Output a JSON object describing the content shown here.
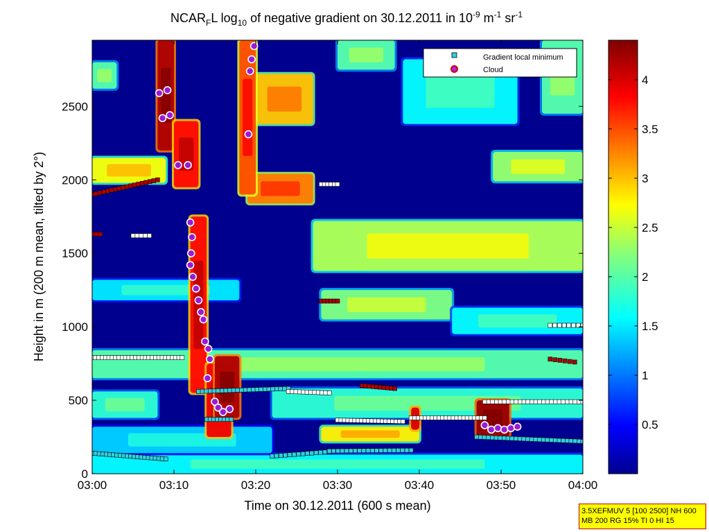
{
  "title": {
    "prefix": "NCAR",
    "sub1": "F",
    "mid": "L log",
    "sub2": "10",
    "rest": " of negative gradient on 30.12.2011 in 10",
    "sup1": "-9",
    "unit1": " m",
    "sup2": "-1",
    "unit2": " sr",
    "sup3": "-1"
  },
  "info_box": {
    "line1": "3.5XEFMUV 5 [100 2500] NH 600",
    "line2": "MB 200 RG 15% TI 0 HI 15"
  },
  "colors": {
    "background": "#00008f",
    "marker_square_fill": "#ffffff",
    "marker_square_cyan": "#30d0e0",
    "marker_square_red": "#b00000",
    "marker_square_magenta": "#ff00ff",
    "cloud_marker_fill": "#9b1ad6",
    "cloud_marker_stroke": "#ffffff"
  },
  "chart_data": {
    "type": "heatmap",
    "title": "NCAR_F L log_10 of negative gradient on 30.12.2011 in 10^-9 m^-1 sr^-1",
    "xlabel": "Time on 30.12.2011 (600 s mean)",
    "ylabel": "Height in m (200 m mean, tilted by 2°)",
    "x_ticks": [
      "03:00",
      "03:10",
      "03:20",
      "03:30",
      "03:40",
      "03:50",
      "04:00"
    ],
    "xlim_minutes": [
      0,
      60
    ],
    "ylim": [
      0,
      2950
    ],
    "y_ticks": [
      0,
      500,
      1000,
      1500,
      2000,
      2500
    ],
    "colorbar": {
      "ticks": [
        0.5,
        1,
        1.5,
        2,
        2.5,
        3,
        3.5,
        4
      ],
      "range": [
        0,
        4.4
      ],
      "colormap": "jet"
    },
    "legend": {
      "placement": "top-right",
      "entries": [
        "Gradient local minimum",
        "Cloud"
      ]
    },
    "layers": [
      {
        "t0": 0,
        "t1": 60,
        "h0": 0,
        "h1": 130,
        "v": 1.6
      },
      {
        "t0": 0,
        "t1": 22,
        "h0": 140,
        "h1": 320,
        "v": 1.4
      },
      {
        "t0": 0,
        "t1": 8,
        "h0": 380,
        "h1": 560,
        "v": 1.8
      },
      {
        "t0": 0,
        "t1": 60,
        "h0": 650,
        "h1": 840,
        "v": 2.0
      },
      {
        "t0": 22,
        "t1": 60,
        "h0": 380,
        "h1": 580,
        "v": 1.8
      },
      {
        "t0": 28,
        "t1": 40,
        "h0": 220,
        "h1": 320,
        "v": 2.8
      },
      {
        "t0": 0,
        "t1": 18,
        "h0": 1180,
        "h1": 1320,
        "v": 1.5
      },
      {
        "t0": 28,
        "t1": 44,
        "h0": 1050,
        "h1": 1250,
        "v": 2.2
      },
      {
        "t0": 44,
        "t1": 60,
        "h0": 950,
        "h1": 1130,
        "v": 1.6
      },
      {
        "t0": 27,
        "t1": 60,
        "h0": 1380,
        "h1": 1720,
        "v": 2.4
      },
      {
        "t0": 0,
        "t1": 9,
        "h0": 1980,
        "h1": 2150,
        "v": 2.7
      },
      {
        "t0": 19,
        "t1": 27,
        "h0": 1840,
        "h1": 2040,
        "v": 3.3
      },
      {
        "t0": 20,
        "t1": 27,
        "h0": 2380,
        "h1": 2720,
        "v": 3.0
      },
      {
        "t0": 49,
        "t1": 60,
        "h0": 1990,
        "h1": 2190,
        "v": 2.3
      },
      {
        "t0": 55,
        "t1": 60,
        "h0": 2450,
        "h1": 2950,
        "v": 2.0
      },
      {
        "t0": 0,
        "t1": 3,
        "h0": 2620,
        "h1": 2800,
        "v": 2.0
      },
      {
        "t0": 30,
        "t1": 37,
        "h0": 2750,
        "h1": 2950,
        "v": 2.0
      },
      {
        "t0": 38,
        "t1": 52,
        "h0": 2380,
        "h1": 2820,
        "v": 1.6
      },
      {
        "t0": 8,
        "t1": 10,
        "h0": 2200,
        "h1": 2950,
        "v": 4.2
      },
      {
        "t0": 10,
        "t1": 13,
        "h0": 1950,
        "h1": 2400,
        "v": 3.8
      },
      {
        "t0": 12,
        "t1": 14,
        "h0": 550,
        "h1": 1750,
        "v": 3.8
      },
      {
        "t0": 14,
        "t1": 17,
        "h0": 250,
        "h1": 750,
        "v": 3.9
      },
      {
        "t0": 15,
        "t1": 18,
        "h0": 380,
        "h1": 800,
        "v": 4.2
      },
      {
        "t0": 18,
        "t1": 20,
        "h0": 1900,
        "h1": 2950,
        "v": 3.5
      },
      {
        "t0": 39,
        "t1": 40,
        "h0": 300,
        "h1": 450,
        "v": 4.0
      },
      {
        "t0": 47,
        "t1": 51,
        "h0": 250,
        "h1": 500,
        "v": 4.3
      }
    ],
    "minima_series": [
      {
        "t0": 0,
        "t1": 11,
        "h0": 790,
        "h1": 790,
        "n": 28,
        "c": "white"
      },
      {
        "t0": 0,
        "t1": 9,
        "h0": 140,
        "h1": 100,
        "n": 22,
        "c": "cyan"
      },
      {
        "t0": 13,
        "t1": 24,
        "h0": 560,
        "h1": 580,
        "n": 24,
        "c": "cyan"
      },
      {
        "t0": 24,
        "t1": 29,
        "h0": 560,
        "h1": 550,
        "n": 12,
        "c": "white"
      },
      {
        "t0": 22,
        "t1": 29,
        "h0": 120,
        "h1": 150,
        "n": 14,
        "c": "cyan"
      },
      {
        "t0": 29,
        "t1": 39,
        "h0": 155,
        "h1": 160,
        "n": 20,
        "c": "cyan"
      },
      {
        "t0": 30,
        "t1": 38,
        "h0": 365,
        "h1": 355,
        "n": 20,
        "c": "white"
      },
      {
        "t0": 39,
        "t1": 48,
        "h0": 380,
        "h1": 380,
        "n": 22,
        "c": "white"
      },
      {
        "t0": 48,
        "t1": 60,
        "h0": 490,
        "h1": 490,
        "n": 26,
        "c": "white"
      },
      {
        "t0": 47,
        "t1": 60,
        "h0": 250,
        "h1": 220,
        "n": 28,
        "c": "cyan"
      },
      {
        "t0": 33,
        "t1": 37,
        "h0": 600,
        "h1": 580,
        "n": 10,
        "c": "red"
      },
      {
        "t0": 28,
        "t1": 30,
        "h0": 1970,
        "h1": 1970,
        "n": 6,
        "c": "white"
      },
      {
        "t0": 0,
        "t1": 8,
        "h0": 1900,
        "h1": 2000,
        "n": 18,
        "c": "red"
      },
      {
        "t0": 14,
        "t1": 17,
        "h0": 370,
        "h1": 370,
        "n": 8,
        "c": "cyan"
      },
      {
        "t0": 56,
        "t1": 60,
        "h0": 1010,
        "h1": 1010,
        "n": 8,
        "c": "white"
      },
      {
        "t0": 56,
        "t1": 59,
        "h0": 780,
        "h1": 760,
        "n": 6,
        "c": "red"
      },
      {
        "t0": 28,
        "t1": 30,
        "h0": 1175,
        "h1": 1175,
        "n": 6,
        "c": "red"
      },
      {
        "t0": 5,
        "t1": 7,
        "h0": 1620,
        "h1": 1620,
        "n": 5,
        "c": "white"
      },
      {
        "t0": 0,
        "t1": 1,
        "h0": 1630,
        "h1": 1630,
        "n": 3,
        "c": "red"
      }
    ],
    "cloud_points": [
      {
        "t": 8.2,
        "h": 2590
      },
      {
        "t": 8.6,
        "h": 2420
      },
      {
        "t": 9.2,
        "h": 2610
      },
      {
        "t": 9.5,
        "h": 2440
      },
      {
        "t": 10.5,
        "h": 2100
      },
      {
        "t": 11.7,
        "h": 2100
      },
      {
        "t": 12.0,
        "h": 1710
      },
      {
        "t": 12.2,
        "h": 1610
      },
      {
        "t": 12.1,
        "h": 1500
      },
      {
        "t": 12.0,
        "h": 1420
      },
      {
        "t": 12.3,
        "h": 1340
      },
      {
        "t": 12.7,
        "h": 1260
      },
      {
        "t": 13.0,
        "h": 1180
      },
      {
        "t": 13.3,
        "h": 1100
      },
      {
        "t": 13.6,
        "h": 1050
      },
      {
        "t": 13.8,
        "h": 900
      },
      {
        "t": 14.2,
        "h": 850
      },
      {
        "t": 14.4,
        "h": 780
      },
      {
        "t": 14.1,
        "h": 650
      },
      {
        "t": 15.0,
        "h": 490
      },
      {
        "t": 15.4,
        "h": 450
      },
      {
        "t": 16.0,
        "h": 420
      },
      {
        "t": 16.8,
        "h": 440
      },
      {
        "t": 19.1,
        "h": 2310
      },
      {
        "t": 19.3,
        "h": 2740
      },
      {
        "t": 19.5,
        "h": 2820
      },
      {
        "t": 19.8,
        "h": 2910
      },
      {
        "t": 48.0,
        "h": 330
      },
      {
        "t": 48.8,
        "h": 300
      },
      {
        "t": 49.6,
        "h": 310
      },
      {
        "t": 50.4,
        "h": 300
      },
      {
        "t": 51.2,
        "h": 310
      },
      {
        "t": 52.0,
        "h": 320
      }
    ]
  }
}
